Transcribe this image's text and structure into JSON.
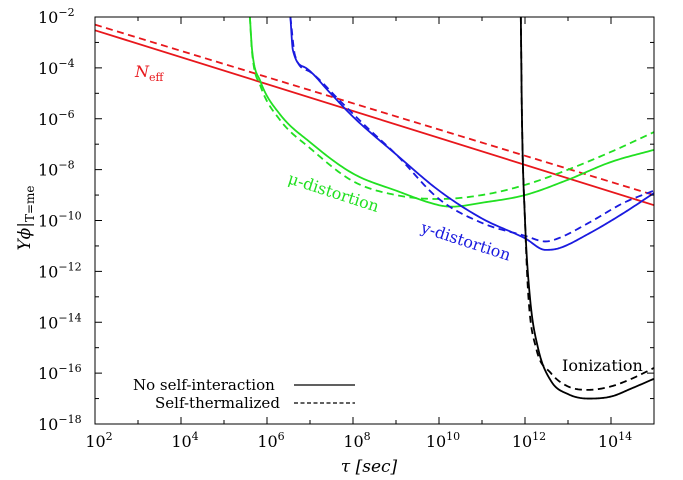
{
  "chart_data": {
    "type": "line",
    "xlabel": "τ [sec]",
    "ylabel": "Y_ϕ|T=m_e",
    "xscale": "log",
    "yscale": "log",
    "xlim": [
      100,
      1000000000000000.0
    ],
    "ylim": [
      1e-18,
      0.01
    ],
    "x_ticks": [
      {
        "base": "10",
        "exp": "2"
      },
      {
        "base": "10",
        "exp": "4"
      },
      {
        "base": "10",
        "exp": "6"
      },
      {
        "base": "10",
        "exp": "8"
      },
      {
        "base": "10",
        "exp": "10"
      },
      {
        "base": "10",
        "exp": "12"
      },
      {
        "base": "10",
        "exp": "14"
      }
    ],
    "y_ticks": [
      {
        "base": "10",
        "exp": "−2"
      },
      {
        "base": "10",
        "exp": "−4"
      },
      {
        "base": "10",
        "exp": "−6"
      },
      {
        "base": "10",
        "exp": "−8"
      },
      {
        "base": "10",
        "exp": "−10"
      },
      {
        "base": "10",
        "exp": "−12"
      },
      {
        "base": "10",
        "exp": "−14"
      },
      {
        "base": "10",
        "exp": "−16"
      },
      {
        "base": "10",
        "exp": "−18"
      }
    ],
    "grid": false,
    "legend_position": "bottom-left",
    "legend": [
      {
        "label": "No self-interaction",
        "dash": "solid"
      },
      {
        "label": "Self-thermalized",
        "dash": "dashed"
      }
    ],
    "annotations": {
      "neff": "N_eff",
      "mu": "μ-distortion",
      "y": "y-distortion",
      "ion": "Ionization"
    },
    "series": [
      {
        "curve": "neff",
        "dash": "solid",
        "color": "#e8171c",
        "points": [
          [
            100,
            0.003
          ],
          [
            1000000000000000.0,
            4e-10
          ]
        ]
      },
      {
        "curve": "neff",
        "dash": "dashed",
        "color": "#e8171c",
        "points": [
          [
            100,
            0.005
          ],
          [
            1000000000000000.0,
            1e-09
          ]
        ]
      },
      {
        "curve": "mu",
        "dash": "solid",
        "color": "#22e022",
        "points": [
          [
            400000.0,
            0.01
          ],
          [
            450000.0,
            0.0005
          ],
          [
            700000.0,
            3e-05
          ],
          [
            2000000.0,
            1.5e-06
          ],
          [
            10000000.0,
            1.2e-07
          ],
          [
            100000000.0,
            7e-09
          ],
          [
            1000000000.0,
            1.5e-09
          ],
          [
            10000000000.0,
            4e-10
          ],
          [
            20000000000.0,
            3.5e-10
          ],
          [
            100000000000.0,
            5e-10
          ],
          [
            1000000000000.0,
            1e-09
          ],
          [
            10000000000000.0,
            4e-09
          ],
          [
            100000000000000.0,
            2e-08
          ],
          [
            1000000000000000.0,
            6e-08
          ]
        ]
      },
      {
        "curve": "mu",
        "dash": "dashed",
        "color": "#22e022",
        "points": [
          [
            400000.0,
            0.01
          ],
          [
            450000.0,
            0.0004
          ],
          [
            700000.0,
            2e-05
          ],
          [
            2000000.0,
            9e-07
          ],
          [
            10000000.0,
            7e-08
          ],
          [
            100000000.0,
            3.5e-09
          ],
          [
            1000000000.0,
            1e-09
          ],
          [
            10000000000.0,
            7e-10
          ],
          [
            100000000000.0,
            1e-09
          ],
          [
            1000000000000.0,
            2.5e-09
          ],
          [
            10000000000000.0,
            1e-08
          ],
          [
            100000000000000.0,
            5e-08
          ],
          [
            1000000000000000.0,
            3e-07
          ]
        ]
      },
      {
        "curve": "y",
        "dash": "solid",
        "color": "#1a1adf",
        "points": [
          [
            3500000.0,
            0.01
          ],
          [
            4000000.0,
            0.0005
          ],
          [
            8000000.0,
            0.0001
          ],
          [
            30000000.0,
            1e-05
          ],
          [
            100000000.0,
            1.2e-06
          ],
          [
            1000000000.0,
            4e-08
          ],
          [
            10000000000.0,
            1.5e-09
          ],
          [
            100000000000.0,
            1.2e-10
          ],
          [
            1000000000000.0,
            2e-11
          ],
          [
            3000000000000.0,
            7e-12
          ],
          [
            6000000000000.0,
            8e-12
          ],
          [
            30000000000000.0,
            3e-11
          ],
          [
            200000000000000.0,
            2e-10
          ],
          [
            1000000000000000.0,
            1.2e-09
          ]
        ]
      },
      {
        "curve": "y",
        "dash": "dashed",
        "color": "#1a1adf",
        "points": [
          [
            3500000.0,
            0.01
          ],
          [
            4500000.0,
            0.0003
          ],
          [
            10000000.0,
            7e-05
          ],
          [
            50000000.0,
            5e-06
          ],
          [
            200000000.0,
            5e-07
          ],
          [
            1000000000.0,
            4e-08
          ],
          [
            10000000000.0,
            7e-10
          ],
          [
            100000000000.0,
            8e-11
          ],
          [
            1000000000000.0,
            2.5e-11
          ],
          [
            3000000000000.0,
            1.5e-11
          ],
          [
            6000000000000.0,
            2e-11
          ],
          [
            30000000000000.0,
            8e-11
          ],
          [
            200000000000000.0,
            5e-10
          ],
          [
            1000000000000000.0,
            1.5e-09
          ]
        ]
      },
      {
        "curve": "ion",
        "dash": "solid",
        "color": "#000000",
        "points": [
          [
            800000000000.0,
            0.01
          ],
          [
            850000000000.0,
            1e-06
          ],
          [
            1000000000000.0,
            1e-10
          ],
          [
            1300000000000.0,
            1e-13
          ],
          [
            2000000000000.0,
            1e-15
          ],
          [
            4000000000000.0,
            5e-17
          ],
          [
            10000000000000.0,
            1.5e-17
          ],
          [
            30000000000000.0,
            1e-17
          ],
          [
            100000000000000.0,
            1.2e-17
          ],
          [
            300000000000000.0,
            2.5e-17
          ],
          [
            1000000000000000.0,
            6e-17
          ]
        ]
      },
      {
        "curve": "ion",
        "dash": "dashed",
        "color": "#000000",
        "points": [
          [
            800000000000.0,
            0.01
          ],
          [
            850000000000.0,
            1e-06
          ],
          [
            1000000000000.0,
            1e-10
          ],
          [
            1200000000000.0,
            1e-13
          ],
          [
            1800000000000.0,
            1e-15
          ],
          [
            4000000000000.0,
            1e-16
          ],
          [
            10000000000000.0,
            3e-17
          ],
          [
            30000000000000.0,
            2.2e-17
          ],
          [
            100000000000000.0,
            3e-17
          ],
          [
            300000000000000.0,
            6e-17
          ],
          [
            1000000000000000.0,
            1.6e-16
          ]
        ]
      }
    ]
  }
}
